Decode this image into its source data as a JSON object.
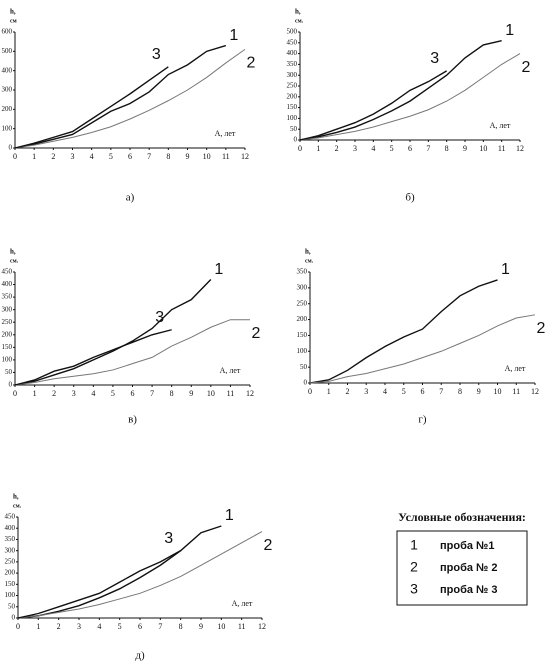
{
  "chart_data": [
    {
      "type": "line",
      "caption": "а)",
      "y_label": "h,",
      "y_unit": "см",
      "x_label": "А, лет",
      "xlim": [
        0,
        12
      ],
      "xticks": [
        0,
        1,
        2,
        3,
        4,
        5,
        6,
        7,
        8,
        9,
        10,
        11,
        12
      ],
      "ylim": [
        0,
        600
      ],
      "yticks": [
        0,
        100,
        200,
        300,
        400,
        500,
        600
      ],
      "series": [
        {
          "name": "1",
          "color": "#111",
          "x": [
            0,
            1,
            2,
            3,
            4,
            5,
            6,
            7,
            8,
            9,
            10,
            11
          ],
          "values": [
            0,
            20,
            45,
            70,
            130,
            190,
            230,
            290,
            380,
            430,
            500,
            530
          ]
        },
        {
          "name": "2",
          "color": "#777",
          "x": [
            0,
            1,
            2,
            3,
            4,
            5,
            6,
            7,
            8,
            9,
            10,
            11,
            12
          ],
          "values": [
            0,
            15,
            35,
            55,
            80,
            110,
            150,
            195,
            245,
            300,
            365,
            440,
            510
          ]
        },
        {
          "name": "3",
          "color": "#111",
          "x": [
            0,
            1,
            2,
            3,
            4,
            5,
            6,
            7,
            8
          ],
          "values": [
            0,
            25,
            55,
            85,
            150,
            215,
            280,
            350,
            420
          ]
        }
      ]
    },
    {
      "type": "line",
      "caption": "б)",
      "y_label": "h,",
      "y_unit": "см.",
      "x_label": "А, лет",
      "xlim": [
        0,
        12
      ],
      "xticks": [
        0,
        1,
        2,
        3,
        4,
        5,
        6,
        7,
        8,
        9,
        10,
        11,
        12
      ],
      "ylim": [
        0,
        500
      ],
      "yticks": [
        0,
        50,
        100,
        150,
        200,
        250,
        300,
        350,
        400,
        450,
        500
      ],
      "series": [
        {
          "name": "1",
          "color": "#111",
          "x": [
            0,
            1,
            2,
            3,
            4,
            5,
            6,
            7,
            8,
            9,
            10,
            11
          ],
          "values": [
            0,
            15,
            35,
            60,
            95,
            135,
            180,
            240,
            300,
            380,
            440,
            460
          ]
        },
        {
          "name": "2",
          "color": "#777",
          "x": [
            0,
            1,
            2,
            3,
            4,
            5,
            6,
            7,
            8,
            9,
            10,
            11,
            12
          ],
          "values": [
            0,
            10,
            25,
            40,
            60,
            85,
            110,
            140,
            180,
            230,
            290,
            350,
            400
          ]
        },
        {
          "name": "3",
          "color": "#111",
          "x": [
            0,
            1,
            2,
            3,
            4,
            5,
            6,
            7,
            8
          ],
          "values": [
            0,
            20,
            50,
            80,
            120,
            170,
            230,
            270,
            320
          ]
        }
      ]
    },
    {
      "type": "line",
      "caption": "в)",
      "y_label": "h,",
      "y_unit": "см.",
      "x_label": "А, лет",
      "xlim": [
        0,
        12
      ],
      "xticks": [
        0,
        1,
        2,
        3,
        4,
        5,
        6,
        7,
        8,
        9,
        10,
        11,
        12
      ],
      "ylim": [
        0,
        450
      ],
      "yticks": [
        0,
        50,
        100,
        150,
        200,
        250,
        300,
        350,
        400,
        450
      ],
      "series": [
        {
          "name": "1",
          "color": "#111",
          "x": [
            0,
            1,
            2,
            3,
            4,
            5,
            6,
            7,
            8,
            9,
            10
          ],
          "values": [
            0,
            15,
            40,
            65,
            100,
            135,
            175,
            225,
            300,
            340,
            420
          ]
        },
        {
          "name": "2",
          "color": "#777",
          "x": [
            0,
            1,
            2,
            3,
            4,
            5,
            6,
            7,
            8,
            9,
            10,
            11,
            12
          ],
          "values": [
            0,
            10,
            25,
            35,
            45,
            60,
            85,
            110,
            155,
            190,
            230,
            260,
            260
          ]
        },
        {
          "name": "3",
          "color": "#111",
          "x": [
            0,
            1,
            2,
            3,
            4,
            5,
            6,
            7,
            8
          ],
          "values": [
            0,
            20,
            55,
            75,
            110,
            140,
            170,
            200,
            220
          ]
        }
      ]
    },
    {
      "type": "line",
      "caption": "г)",
      "y_label": "h,",
      "y_unit": "см.",
      "x_label": "А, лет",
      "xlim": [
        0,
        12
      ],
      "xticks": [
        0,
        1,
        2,
        3,
        4,
        5,
        6,
        7,
        8,
        9,
        10,
        11,
        12
      ],
      "ylim": [
        0,
        350
      ],
      "yticks": [
        0,
        50,
        100,
        150,
        200,
        250,
        300,
        350
      ],
      "series": [
        {
          "name": "1",
          "color": "#111",
          "x": [
            0,
            1,
            2,
            3,
            4,
            5,
            6,
            7,
            8,
            9,
            10
          ],
          "values": [
            0,
            10,
            40,
            80,
            115,
            145,
            170,
            225,
            275,
            305,
            325
          ]
        },
        {
          "name": "2",
          "color": "#777",
          "x": [
            0,
            1,
            2,
            3,
            4,
            5,
            6,
            7,
            8,
            9,
            10,
            11,
            12
          ],
          "values": [
            0,
            5,
            20,
            30,
            45,
            60,
            80,
            100,
            125,
            150,
            180,
            205,
            215
          ]
        }
      ]
    },
    {
      "type": "line",
      "caption": "д)",
      "y_label": "h,",
      "y_unit": "см.",
      "x_label": "А, лет",
      "xlim": [
        0,
        12
      ],
      "xticks": [
        0,
        1,
        2,
        3,
        4,
        5,
        6,
        7,
        8,
        9,
        10,
        11,
        12
      ],
      "ylim": [
        0,
        450
      ],
      "yticks": [
        0,
        50,
        100,
        150,
        200,
        250,
        300,
        350,
        400,
        450
      ],
      "series": [
        {
          "name": "1",
          "color": "#111",
          "x": [
            0,
            1,
            2,
            3,
            4,
            5,
            6,
            7,
            8,
            9,
            10
          ],
          "values": [
            0,
            10,
            30,
            55,
            90,
            130,
            180,
            235,
            300,
            380,
            410
          ]
        },
        {
          "name": "2",
          "color": "#777",
          "x": [
            0,
            1,
            2,
            3,
            4,
            5,
            6,
            7,
            8,
            9,
            10,
            11,
            12
          ],
          "values": [
            0,
            10,
            25,
            40,
            60,
            85,
            110,
            145,
            185,
            235,
            285,
            335,
            385
          ]
        },
        {
          "name": "3",
          "color": "#111",
          "x": [
            0,
            1,
            2,
            3,
            4,
            5,
            6,
            7,
            8
          ],
          "values": [
            0,
            20,
            50,
            80,
            110,
            160,
            210,
            250,
            300
          ]
        }
      ]
    }
  ],
  "legend": {
    "title": "Условные обозначения:",
    "items": [
      {
        "key": "1",
        "label": "проба №1"
      },
      {
        "key": "2",
        "label": "проба № 2"
      },
      {
        "key": "3",
        "label": "проба № 3"
      }
    ]
  }
}
